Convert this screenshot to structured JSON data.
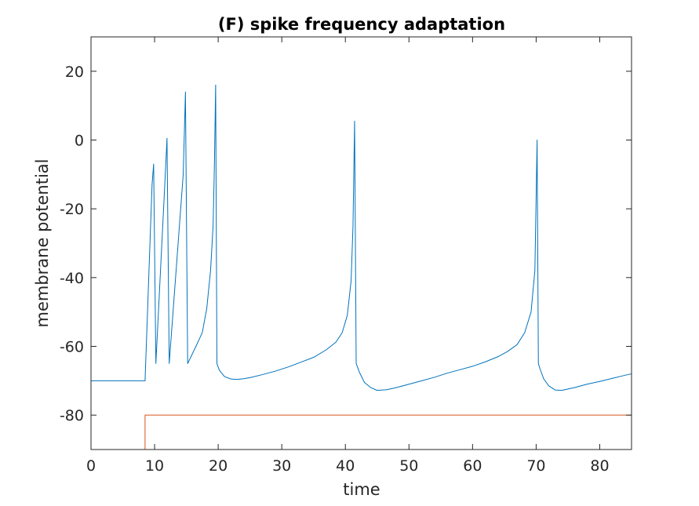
{
  "chart_data": {
    "type": "line",
    "title": "(F) spike frequency adaptation",
    "xlabel": "time",
    "ylabel": "membrane potential",
    "xlim": [
      0,
      85
    ],
    "ylim": [
      -90,
      30
    ],
    "xticks": [
      0,
      10,
      20,
      30,
      40,
      50,
      60,
      70,
      80
    ],
    "yticks": [
      20,
      0,
      -20,
      -40,
      -60,
      -80
    ],
    "grid": false,
    "legend": "none",
    "colors": {
      "membrane": "#0072BD",
      "input": "#D95319",
      "axes": "#262626"
    },
    "series": [
      {
        "x": [
          0,
          8.5,
          9.6,
          9.85,
          10.2,
          11.6,
          11.95,
          12.3,
          14.5,
          14.85,
          15.2,
          16.5,
          17.5,
          18.2,
          18.8,
          19.2,
          19.4,
          19.6,
          19.8,
          20.2,
          21,
          22,
          23,
          24,
          25,
          27,
          29,
          31,
          33,
          35,
          37,
          38.5,
          39.5,
          40.3,
          40.9,
          41.2,
          41.45,
          41.7,
          42.2,
          43,
          44,
          45,
          46.5,
          48,
          50,
          52,
          54,
          56,
          58,
          60,
          62,
          64,
          65.5,
          67,
          68.2,
          69.2,
          69.8,
          70.15,
          70.35,
          70.6,
          71.2,
          72,
          73,
          74,
          75,
          76,
          78,
          80,
          82,
          84,
          85
        ],
        "y": [
          -70,
          -70,
          -13,
          -7,
          -65,
          -13,
          0.5,
          -65,
          -10,
          14,
          -65,
          -60,
          -56,
          -49,
          -38,
          -25,
          -8,
          16,
          -65,
          -67,
          -68.8,
          -69.5,
          -69.6,
          -69.4,
          -69.1,
          -68.2,
          -67.2,
          -66,
          -64.6,
          -63.2,
          -61,
          -58.8,
          -56,
          -51,
          -41,
          -25,
          5.5,
          -65,
          -67.5,
          -70.5,
          -72,
          -72.8,
          -72.6,
          -72,
          -71,
          -70,
          -69,
          -67.8,
          -66.8,
          -65.8,
          -64.5,
          -63,
          -61.5,
          -59.5,
          -56,
          -50,
          -38,
          0,
          -65,
          -66.5,
          -69.5,
          -71.5,
          -72.7,
          -72.8,
          -72.4,
          -72,
          -71,
          -70.2,
          -69.3,
          -68.4,
          -68
        ]
      },
      {
        "x": [
          0,
          8.5,
          8.5,
          85
        ],
        "y": [
          -90,
          -90,
          -80,
          -80
        ]
      }
    ]
  }
}
